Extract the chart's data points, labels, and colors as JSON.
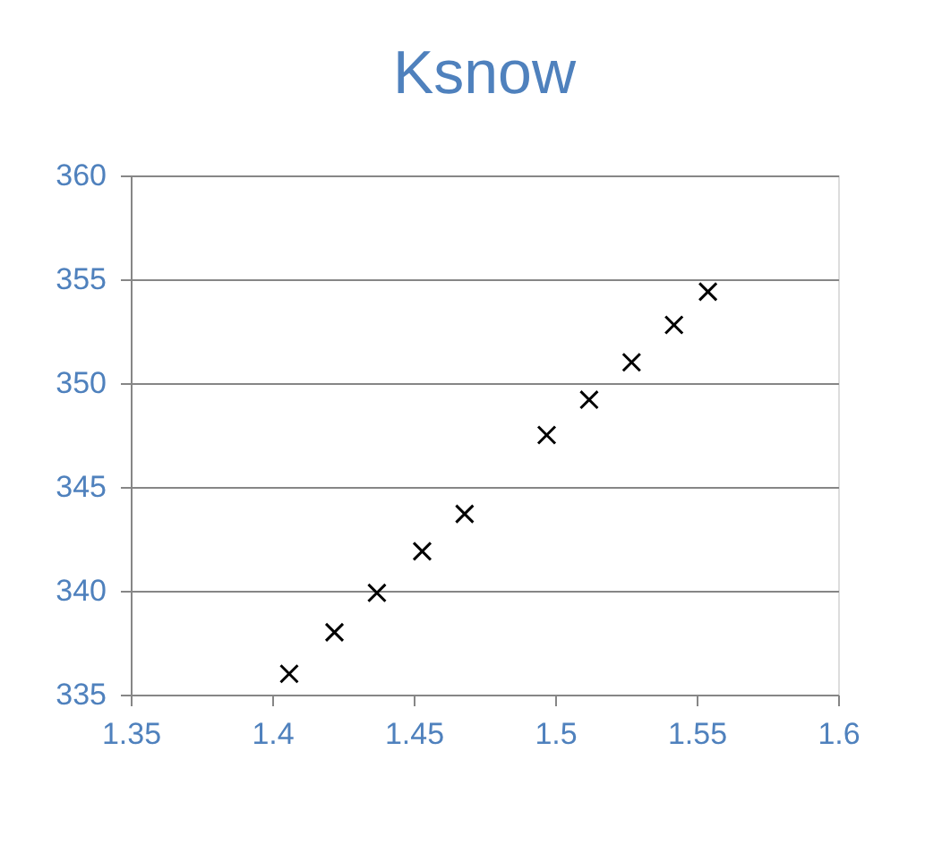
{
  "chart_data": {
    "type": "scatter",
    "title": "Ksnow",
    "x": [
      1.406,
      1.422,
      1.437,
      1.453,
      1.468,
      1.497,
      1.512,
      1.527,
      1.542,
      1.554
    ],
    "values": [
      336.0,
      338.0,
      339.9,
      341.9,
      343.7,
      347.5,
      349.2,
      351.0,
      352.8,
      354.4
    ],
    "color": "#000000",
    "marker": "cross",
    "xlim": [
      1.35,
      1.6
    ],
    "xticks": [
      1.35,
      1.4,
      1.45,
      1.5,
      1.55,
      1.6
    ],
    "ylim": [
      335,
      360
    ],
    "yticks": [
      335,
      340,
      345,
      350,
      355,
      360
    ],
    "grid": "y"
  }
}
